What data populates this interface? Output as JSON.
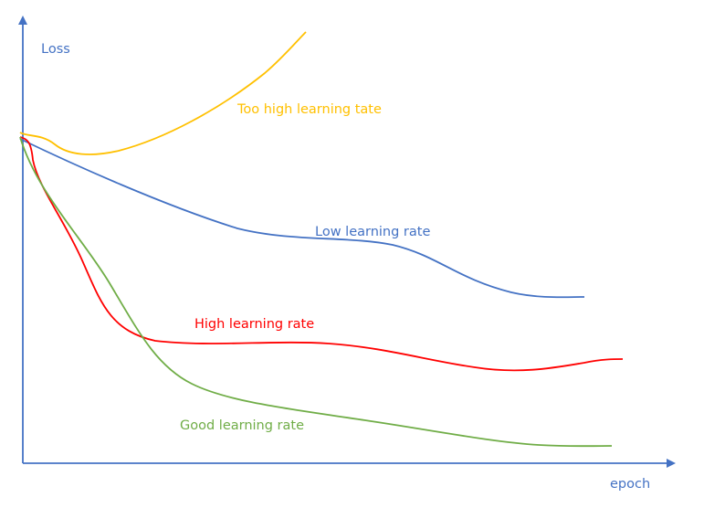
{
  "axes": {
    "y_label": "Loss",
    "x_label": "epoch"
  },
  "curves": [
    {
      "label": "Too high learning tate"
    },
    {
      "label": "Low learning rate"
    },
    {
      "label": "High learning rate"
    },
    {
      "label": "Good learning rate"
    }
  ]
}
